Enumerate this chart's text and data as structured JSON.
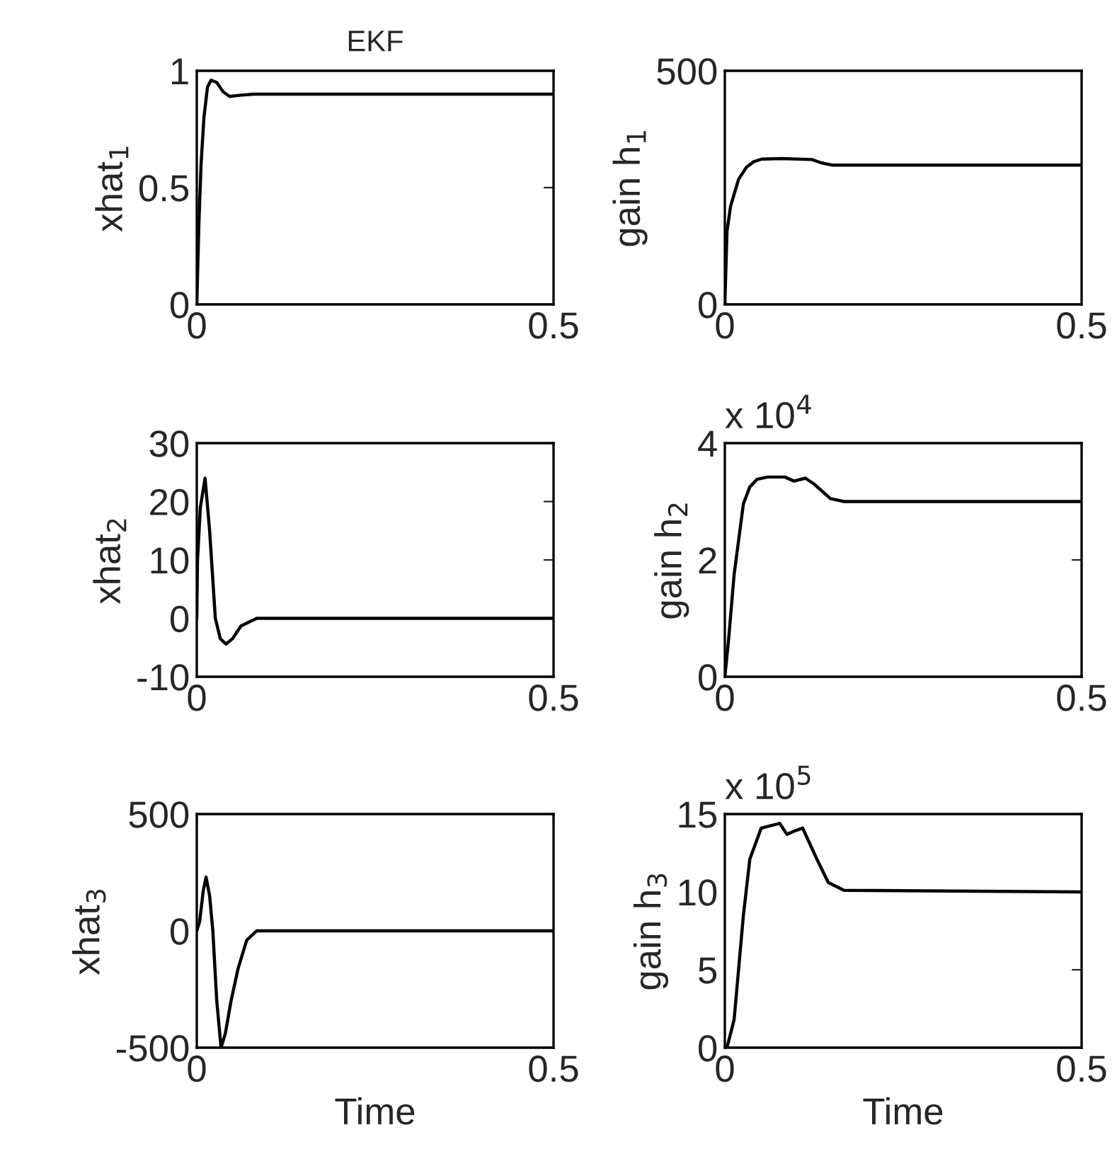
{
  "chart_data": [
    {
      "type": "line",
      "title": "EKF",
      "ylabel": "xhat$_{1}$",
      "xlim": [
        0,
        0.5
      ],
      "xticks": [
        0,
        0.5
      ],
      "ylim": [
        0,
        1
      ],
      "yticks": [
        0,
        0.5,
        1
      ],
      "grid": false,
      "x": [
        0,
        0.003,
        0.006,
        0.01,
        0.015,
        0.02,
        0.028,
        0.037,
        0.046,
        0.06,
        0.08,
        0.5
      ],
      "series": [
        {
          "color": "#000000",
          "values": [
            0,
            0.35,
            0.6,
            0.8,
            0.93,
            0.96,
            0.95,
            0.91,
            0.89,
            0.895,
            0.9,
            0.9
          ]
        }
      ]
    },
    {
      "type": "line",
      "ylabel": "gain h$_{1}$",
      "xlim": [
        0,
        0.5
      ],
      "xticks": [
        0,
        0.5
      ],
      "ylim": [
        0,
        500
      ],
      "yticks": [
        0,
        500
      ],
      "grid": false,
      "x": [
        0,
        0.003,
        0.008,
        0.0193,
        0.03,
        0.04,
        0.0515,
        0.08,
        0.122,
        0.135,
        0.151,
        0.2,
        0.5
      ],
      "series": [
        {
          "color": "#000000",
          "values": [
            0,
            156,
            210,
            268,
            293,
            305,
            311,
            312,
            310,
            303,
            298,
            298,
            298
          ]
        }
      ]
    },
    {
      "type": "line",
      "ylabel": "xhat$_{2}$",
      "xlim": [
        0,
        0.5
      ],
      "xticks": [
        0,
        0.5
      ],
      "ylim": [
        -10,
        30
      ],
      "yticks": [
        -10,
        0,
        10,
        20,
        30
      ],
      "grid": false,
      "x": [
        0,
        0.001,
        0.005,
        0.0116,
        0.018,
        0.026,
        0.033,
        0.041,
        0.05,
        0.062,
        0.084,
        0.5
      ],
      "series": [
        {
          "color": "#000000",
          "values": [
            0,
            10,
            19,
            24,
            15,
            0,
            -3.5,
            -4.4,
            -3.5,
            -1.3,
            0,
            0
          ]
        }
      ]
    },
    {
      "type": "line",
      "ylabel": "gain h$_{2}$",
      "annotations": [
        "x 10$^{4}$"
      ],
      "xlim": [
        0,
        0.5
      ],
      "xticks": [
        0,
        0.5
      ],
      "ylim": [
        0,
        4
      ],
      "yticks": [
        0,
        2,
        4
      ],
      "grid": false,
      "x": [
        0,
        0.005,
        0.013,
        0.026,
        0.035,
        0.045,
        0.06,
        0.084,
        0.097,
        0.113,
        0.125,
        0.148,
        0.167,
        0.5
      ],
      "series": [
        {
          "color": "#000000",
          "values": [
            0,
            0.6,
            1.75,
            2.96,
            3.25,
            3.38,
            3.42,
            3.42,
            3.35,
            3.4,
            3.3,
            3.05,
            3.0,
            3.0
          ]
        }
      ]
    },
    {
      "type": "line",
      "ylabel": "xhat$_{3}$",
      "xlabel": "Time",
      "xlim": [
        0,
        0.5
      ],
      "xticks": [
        0,
        0.5
      ],
      "ylim": [
        -500,
        500
      ],
      "yticks": [
        -500,
        0,
        500
      ],
      "grid": false,
      "x": [
        0,
        0.004,
        0.009,
        0.013,
        0.018,
        0.0225,
        0.028,
        0.034,
        0.04,
        0.048,
        0.058,
        0.07,
        0.084,
        0.5
      ],
      "series": [
        {
          "color": "#000000",
          "values": [
            0,
            40,
            170,
            230,
            150,
            0,
            -300,
            -500,
            -440,
            -300,
            -160,
            -40,
            0,
            0
          ]
        }
      ]
    },
    {
      "type": "line",
      "ylabel": "gain h$_{3}$",
      "xlabel": "Time",
      "annotations": [
        "x 10$^{5}$"
      ],
      "xlim": [
        0,
        0.5
      ],
      "xticks": [
        0,
        0.5
      ],
      "ylim": [
        0,
        15
      ],
      "yticks": [
        0,
        5,
        10,
        15
      ],
      "grid": false,
      "x": [
        0,
        0.003,
        0.013,
        0.026,
        0.035,
        0.051,
        0.077,
        0.087,
        0.097,
        0.109,
        0.129,
        0.145,
        0.167,
        0.5
      ],
      "series": [
        {
          "color": "#000000",
          "values": [
            0,
            0,
            1.8,
            8.5,
            12.1,
            14.1,
            14.4,
            13.7,
            13.9,
            14.1,
            12.1,
            10.6,
            10.1,
            10.0
          ]
        }
      ]
    }
  ]
}
